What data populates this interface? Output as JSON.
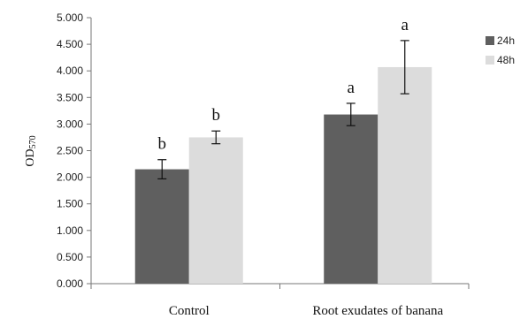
{
  "chart_data": {
    "type": "bar",
    "categories": [
      "Control",
      "Root exudates of banana"
    ],
    "series": [
      {
        "name": "24h",
        "color": "#5f5f5f",
        "values": [
          2.15,
          3.18
        ],
        "errors": [
          0.18,
          0.21
        ],
        "labels": [
          "b",
          "a"
        ]
      },
      {
        "name": "48h",
        "color": "#dcdcdc",
        "values": [
          2.75,
          4.07
        ],
        "errors": [
          0.12,
          0.5
        ],
        "labels": [
          "b",
          "a"
        ]
      }
    ],
    "ylabel_main": "OD",
    "ylabel_sub": "570",
    "ylim": [
      0,
      5
    ],
    "yticks": [
      "0.000",
      "0.500",
      "1.000",
      "1.500",
      "2.000",
      "2.500",
      "3.000",
      "3.500",
      "4.000",
      "4.500",
      "5.000"
    ],
    "grid": false,
    "legend_position": "right"
  }
}
